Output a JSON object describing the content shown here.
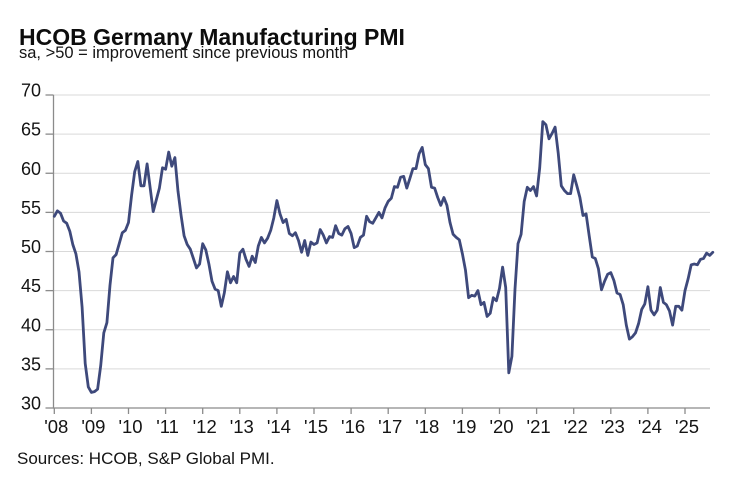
{
  "chart_data": {
    "type": "line",
    "title": "HCOB Germany Manufacturing PMI",
    "subtitle": "sa, >50 = improvement since previous month",
    "source": "Sources: HCOB, S&P Global PMI.",
    "frequency": "monthly",
    "x_start": "2008-01",
    "x_end": "2025-10",
    "x_tick_labels": [
      "'08",
      "'09",
      "'10",
      "'11",
      "'12",
      "'13",
      "'14",
      "'15",
      "'16",
      "'17",
      "'18",
      "'19",
      "'20",
      "'21",
      "'22",
      "'23",
      "'24",
      "'25"
    ],
    "y_ticks": [
      30,
      35,
      40,
      45,
      50,
      55,
      60,
      65,
      70
    ],
    "ylim": [
      30,
      70
    ],
    "grid": "horizontal",
    "legend": "none",
    "colors": {
      "line": "#3E497B",
      "gridline": "#D9D9D9",
      "axis": "#8B8B8B",
      "text": "#141414"
    },
    "series": [
      {
        "name": "HCOB Germany Manufacturing PMI (sa)",
        "color": "#3E497B",
        "values": [
          54.5,
          55.2,
          54.9,
          53.9,
          53.6,
          52.6,
          50.9,
          49.7,
          47.4,
          42.9,
          35.7,
          32.7,
          32.0,
          32.1,
          32.4,
          35.4,
          39.6,
          40.9,
          45.7,
          49.2,
          49.6,
          51.0,
          52.4,
          52.7,
          53.7,
          57.2,
          60.2,
          61.5,
          58.4,
          58.4,
          61.2,
          58.2,
          55.1,
          56.6,
          58.1,
          60.7,
          60.5,
          62.7,
          60.9,
          62.0,
          57.7,
          54.6,
          52.0,
          50.9,
          50.3,
          49.1,
          47.9,
          48.4,
          51.0,
          50.2,
          48.4,
          46.2,
          45.2,
          45.0,
          43.0,
          44.7,
          47.4,
          46.0,
          46.8,
          46.0,
          49.8,
          50.3,
          49.0,
          48.1,
          49.4,
          48.6,
          50.7,
          51.8,
          51.1,
          51.7,
          52.7,
          54.3,
          56.5,
          54.8,
          53.7,
          54.1,
          52.3,
          52.0,
          52.4,
          51.4,
          49.9,
          51.4,
          49.5,
          51.2,
          50.9,
          51.1,
          52.8,
          52.1,
          51.1,
          51.9,
          51.8,
          53.3,
          52.3,
          52.1,
          52.9,
          53.2,
          52.3,
          50.5,
          50.7,
          51.8,
          52.1,
          54.5,
          53.8,
          53.6,
          54.3,
          55.0,
          54.3,
          55.6,
          56.4,
          56.8,
          58.3,
          58.2,
          59.5,
          59.6,
          58.1,
          59.3,
          60.6,
          60.6,
          62.5,
          63.3,
          61.1,
          60.6,
          58.2,
          58.1,
          56.9,
          55.9,
          56.9,
          55.9,
          53.7,
          52.2,
          51.8,
          51.5,
          49.7,
          47.6,
          44.1,
          44.4,
          44.3,
          45.0,
          43.2,
          43.5,
          41.7,
          42.1,
          44.1,
          43.7,
          45.3,
          48.0,
          45.4,
          34.5,
          36.6,
          45.2,
          51.0,
          52.2,
          56.4,
          58.2,
          57.8,
          58.3,
          57.1,
          60.7,
          66.6,
          66.2,
          64.4,
          65.1,
          65.9,
          62.6,
          58.4,
          57.8,
          57.4,
          57.4,
          59.8,
          58.4,
          56.9,
          54.6,
          54.8,
          52.0,
          49.3,
          49.1,
          47.8,
          45.1,
          46.2,
          47.1,
          47.3,
          46.3,
          44.7,
          44.5,
          43.2,
          40.6,
          38.8,
          39.1,
          39.6,
          40.8,
          42.6,
          43.3,
          45.5,
          42.5,
          41.9,
          42.5,
          45.4,
          43.5,
          43.2,
          42.4,
          40.6,
          43.0,
          43.0,
          42.5,
          45.0,
          46.5,
          48.3,
          48.4,
          48.3,
          49.0,
          49.1,
          49.8,
          49.5,
          49.9
        ]
      }
    ]
  }
}
